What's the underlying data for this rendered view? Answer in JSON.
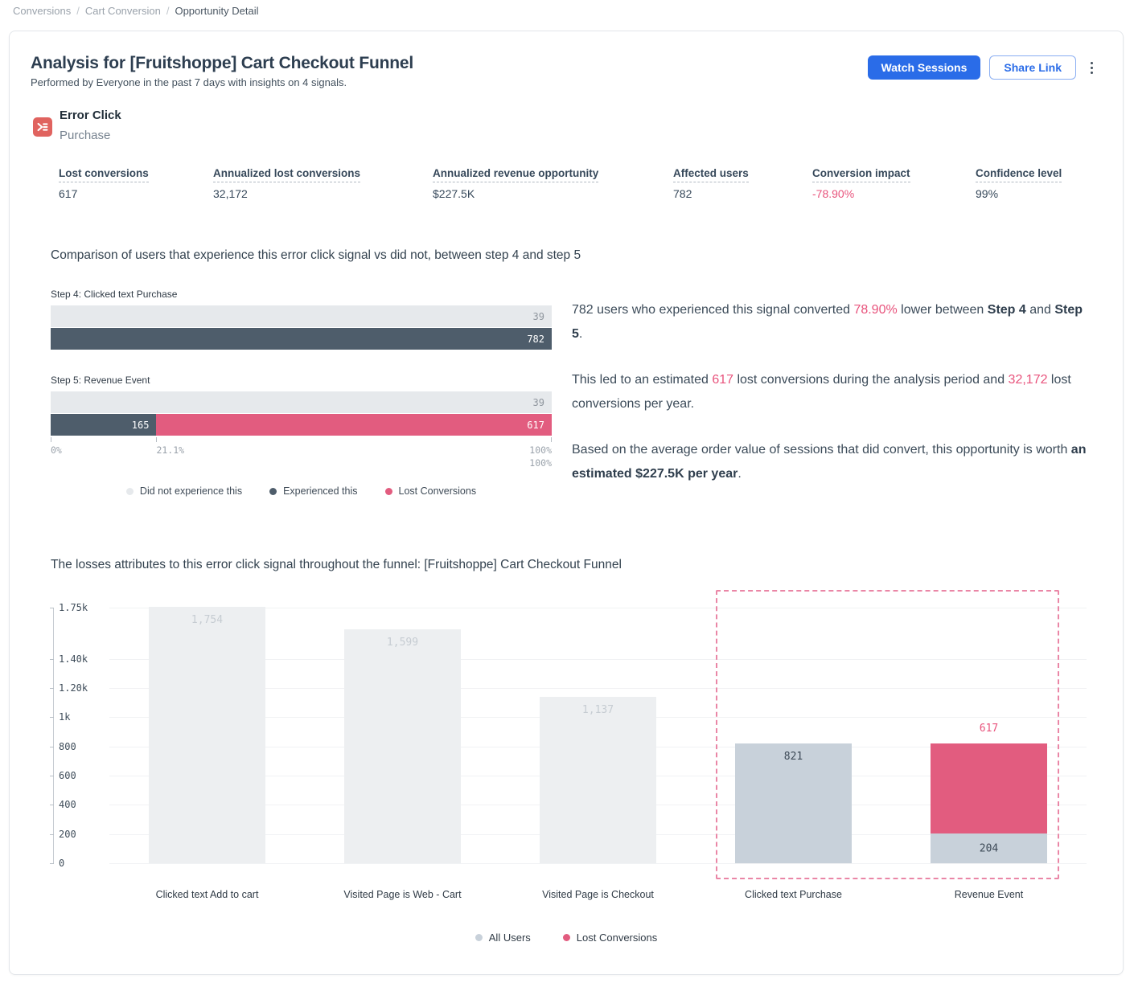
{
  "breadcrumb": {
    "separator": "/",
    "items": [
      {
        "label": "Conversions",
        "current": false
      },
      {
        "label": "Cart Conversion",
        "current": false
      },
      {
        "label": "Opportunity Detail",
        "current": true
      }
    ]
  },
  "header": {
    "title": "Analysis for [Fruitshoppe] Cart Checkout Funnel",
    "subtitle": "Performed by Everyone in the past 7 days with insights on 4 signals.",
    "watch_sessions_label": "Watch Sessions",
    "share_link_label": "Share Link",
    "more_options_icon": "kebab-menu-icon"
  },
  "signal": {
    "type": "Error Click",
    "name": "Purchase",
    "icon": "error-click-icon"
  },
  "metrics": [
    {
      "label": "Lost conversions",
      "value": "617"
    },
    {
      "label": "Annualized lost conversions",
      "value": "32,172"
    },
    {
      "label": "Annualized revenue opportunity",
      "value": "$227.5K"
    },
    {
      "label": "Affected users",
      "value": "782"
    },
    {
      "label": "Conversion impact",
      "value": "-78.90%",
      "value_color": "#e8537c"
    },
    {
      "label": "Confidence level",
      "value": "99%"
    }
  ],
  "comparison": {
    "title": "Comparison of users that experience this error click signal vs did not, between step 4 and step 5",
    "legend": [
      {
        "label": "Did not experience this",
        "color": "#e6e9ec"
      },
      {
        "label": "Experienced this",
        "color": "#4e5d6b"
      },
      {
        "label": "Lost Conversions",
        "color": "#e25c7f"
      }
    ],
    "narrative": [
      {
        "parts": [
          {
            "t": "782 users who experienced this signal converted "
          },
          {
            "t": "78.90%",
            "s": "pink"
          },
          {
            "t": " lower between "
          },
          {
            "t": "Step 4",
            "s": "strong"
          },
          {
            "t": " and "
          },
          {
            "t": "Step 5",
            "s": "strong"
          },
          {
            "t": "."
          }
        ]
      },
      {
        "parts": [
          {
            "t": "This led to an estimated "
          },
          {
            "t": "617",
            "s": "pink"
          },
          {
            "t": " lost conversions during the analysis period and "
          },
          {
            "t": "32,172",
            "s": "pink"
          },
          {
            "t": " lost conversions per year."
          }
        ]
      },
      {
        "parts": [
          {
            "t": "Based on the average order value of sessions that did convert, this opportunity is worth "
          },
          {
            "t": "an estimated $227.5K per year",
            "s": "strong"
          },
          {
            "t": "."
          }
        ]
      }
    ]
  },
  "funnel_section": {
    "title": "The losses attributes to this error click signal throughout the funnel: [Fruitshoppe] Cart Checkout Funnel"
  },
  "chart_data": [
    {
      "id": "signal-step-comparison",
      "type": "bar",
      "orientation": "horizontal",
      "title": "Comparison of users that experience this error click signal vs did not, between step 4 and step 5",
      "xlim": [
        0,
        100
      ],
      "steps": [
        {
          "label": "Step 4: Clicked text Purchase",
          "rows": [
            {
              "series": "Did not experience this",
              "segments": [
                {
                  "value": 39,
                  "pct": 100,
                  "color": "light"
                }
              ]
            },
            {
              "series": "Experienced this",
              "segments": [
                {
                  "value": 782,
                  "pct": 100,
                  "color": "dark"
                }
              ]
            }
          ]
        },
        {
          "label": "Step 5: Revenue Event",
          "rows": [
            {
              "series": "Did not experience this",
              "segments": [
                {
                  "value": 39,
                  "pct": 100,
                  "color": "light"
                }
              ]
            },
            {
              "series": "Experienced this / Lost Conversions",
              "segments": [
                {
                  "value": 165,
                  "pct": 21.1,
                  "color": "dark"
                },
                {
                  "value": 617,
                  "pct": 78.9,
                  "color": "pink"
                }
              ]
            }
          ]
        }
      ],
      "x_axis_labels": [
        {
          "pos": 0,
          "label": "0%",
          "align": "left",
          "row": 1
        },
        {
          "pos": 21.1,
          "label": "21.1%",
          "align": "left",
          "row": 1
        },
        {
          "pos": 100,
          "label": "100%",
          "align": "right",
          "row": 1
        },
        {
          "pos": 100,
          "label": "100%",
          "align": "right",
          "row": 2
        }
      ],
      "legend_position": "bottom"
    },
    {
      "id": "funnel-losses",
      "type": "bar",
      "title": "The losses attributes to this error click signal throughout the funnel: [Fruitshoppe] Cart Checkout Funnel",
      "categories": [
        "Clicked text Add to cart",
        "Visited Page is Web - Cart",
        "Visited Page is Checkout",
        "Clicked text Purchase",
        "Revenue Event"
      ],
      "series": [
        {
          "name": "All Users",
          "values": [
            1754,
            1599,
            1137,
            821,
            204
          ]
        },
        {
          "name": "Lost Conversions",
          "values": [
            0,
            0,
            0,
            0,
            617
          ]
        }
      ],
      "ylim": [
        0,
        1750
      ],
      "yticks": [
        {
          "value": 0,
          "label": "0"
        },
        {
          "value": 200,
          "label": "200"
        },
        {
          "value": 400,
          "label": "400"
        },
        {
          "value": 600,
          "label": "600"
        },
        {
          "value": 800,
          "label": "800"
        },
        {
          "value": 1000,
          "label": "1k"
        },
        {
          "value": 1200,
          "label": "1.20k"
        },
        {
          "value": 1400,
          "label": "1.40k"
        },
        {
          "value": 1750,
          "label": "1.75k"
        }
      ],
      "grid": true,
      "highlighted_categories": [
        "Clicked text Purchase",
        "Revenue Event"
      ],
      "legend": [
        {
          "name": "All Users",
          "color": "#c8d1da"
        },
        {
          "name": "Lost Conversions",
          "color": "#e25c7f"
        }
      ],
      "legend_position": "bottom"
    }
  ],
  "colors": {
    "accent_blue": "#2a6ce8",
    "pink_text": "#e8537c",
    "pink_bar": "#e25c7f",
    "dark_slate_bar": "#4e5d6b",
    "light_gray_bar": "#e6e9ec",
    "muted_bar": "#edeff1",
    "highlight_bar": "#c8d1da",
    "signal_icon_red": "#e0635f"
  }
}
